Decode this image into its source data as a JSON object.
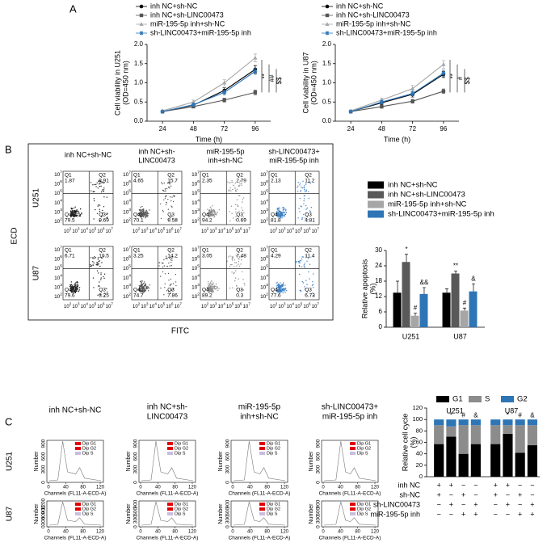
{
  "panel_labels": [
    "A",
    "B",
    "C"
  ],
  "chart_data": [
    {
      "type": "line",
      "ylabel": [
        "Cell viability in U251",
        "(OD=450 nm)"
      ],
      "xlabel": "Time (h)",
      "x": [
        24,
        48,
        72,
        96
      ],
      "xlim": [
        12,
        108
      ],
      "xticks": [
        24,
        48,
        72,
        96
      ],
      "ylim": [
        0,
        2
      ],
      "yticks": [
        {
          "value": 0,
          "label": "0.0"
        },
        0.5,
        {
          "value": 1,
          "label": "1.0"
        },
        1.5,
        {
          "value": 2,
          "label": "2.0"
        }
      ],
      "annotations": [
        "**",
        "##",
        "$$"
      ],
      "series": [
        {
          "name": "inh NC+sh-NC",
          "color": "#000000",
          "marker": "circle",
          "values": [
            0.25,
            0.42,
            0.8,
            1.35
          ],
          "errors": [
            0.02,
            0.04,
            0.07,
            0.1
          ]
        },
        {
          "name": "inh NC+sh-LINC00473",
          "color": "#555555",
          "marker": "square",
          "values": [
            0.25,
            0.38,
            0.55,
            0.75
          ],
          "errors": [
            0.02,
            0.03,
            0.05,
            0.06
          ]
        },
        {
          "name": "miR-195-5p inh+sh-NC",
          "color": "#a6a6a6",
          "marker": "triangle",
          "values": [
            0.27,
            0.5,
            1.0,
            1.65
          ],
          "errors": [
            0.02,
            0.05,
            0.08,
            0.1
          ]
        },
        {
          "name": "sh-LINC00473+miR-195-5p inh",
          "color": "#2e75b6",
          "marker": "star",
          "values": [
            0.25,
            0.43,
            0.75,
            1.3
          ],
          "errors": [
            0.02,
            0.04,
            0.06,
            0.08
          ]
        }
      ]
    },
    {
      "type": "line",
      "ylabel": [
        "Cell viability in U87",
        "(OD=450 nm)"
      ],
      "xlabel": "Time (h)",
      "x": [
        24,
        48,
        72,
        96
      ],
      "xlim": [
        12,
        108
      ],
      "xticks": [
        24,
        48,
        72,
        96
      ],
      "ylim": [
        0,
        2
      ],
      "yticks": [
        {
          "value": 0,
          "label": "0.0"
        },
        0.5,
        {
          "value": 1,
          "label": "1.0"
        },
        1.5,
        {
          "value": 2,
          "label": "2.0"
        }
      ],
      "annotations": [
        "**",
        "#",
        "$$"
      ],
      "series": [
        {
          "name": "inh NC+sh-NC",
          "color": "#000000",
          "marker": "circle",
          "values": [
            0.25,
            0.48,
            0.7,
            1.22
          ],
          "errors": [
            0.02,
            0.05,
            0.07,
            0.08
          ]
        },
        {
          "name": "inh NC+sh-LINC00473",
          "color": "#555555",
          "marker": "square",
          "values": [
            0.25,
            0.38,
            0.52,
            0.78
          ],
          "errors": [
            0.02,
            0.04,
            0.05,
            0.06
          ]
        },
        {
          "name": "miR-195-5p inh+sh-NC",
          "color": "#a6a6a6",
          "marker": "triangle",
          "values": [
            0.27,
            0.55,
            0.85,
            1.48
          ],
          "errors": [
            0.02,
            0.05,
            0.08,
            0.1
          ]
        },
        {
          "name": "sh-LINC00473+miR-195-5p inh",
          "color": "#2e75b6",
          "marker": "star",
          "values": [
            0.25,
            0.5,
            0.72,
            1.25
          ],
          "errors": [
            0.02,
            0.05,
            0.06,
            0.08
          ]
        }
      ]
    },
    {
      "type": "bar",
      "ylabel": [
        "Relative apoptosis",
        "(%)"
      ],
      "categories": [
        "U251",
        "U87"
      ],
      "ylim": [
        0,
        30
      ],
      "yticks": [
        0,
        6,
        12,
        18,
        24,
        30
      ],
      "series": [
        {
          "name": "inh NC+sh-NC",
          "color": "#000000",
          "values": [
            13.5,
            13.5
          ],
          "errors": [
            4.5,
            1.5
          ],
          "significance": [
            null,
            null
          ]
        },
        {
          "name": "inh NC+sh-LINC00473",
          "color": "#595959",
          "values": [
            25.5,
            21
          ],
          "errors": [
            3,
            1
          ],
          "significance": [
            "*",
            "**"
          ]
        },
        {
          "name": "miR-195-5p inh+sh-NC",
          "color": "#a6a6a6",
          "values": [
            4.5,
            6.5
          ],
          "errors": [
            1,
            1
          ],
          "significance": [
            "#",
            "#"
          ]
        },
        {
          "name": "sh-LINC00473+miR-195-5p inh",
          "color": "#2e75b6",
          "values": [
            13,
            14
          ],
          "errors": [
            2.5,
            3
          ],
          "significance": [
            "&&",
            "&"
          ]
        }
      ]
    },
    {
      "type": "stacked_bar",
      "ylabel": [
        "Relative cell cycle",
        "(%)"
      ],
      "groups": [
        "U251",
        "U87"
      ],
      "ylim": [
        0,
        120
      ],
      "yticks": [
        0,
        20,
        40,
        60,
        80,
        100,
        120
      ],
      "significance": [
        null,
        "*",
        "#",
        "&",
        null,
        "*",
        "#",
        "&"
      ],
      "series": [
        {
          "name": "G1",
          "color": "#000000",
          "values": [
            57,
            70,
            40,
            57,
            57,
            75,
            42,
            55
          ]
        },
        {
          "name": "S",
          "color": "#8c8c8c",
          "values": [
            33,
            18,
            50,
            33,
            33,
            15,
            48,
            35
          ]
        },
        {
          "name": "G2",
          "color": "#2e75b6",
          "values": [
            10,
            12,
            10,
            10,
            10,
            10,
            10,
            10
          ]
        }
      ],
      "conditions": [
        {
          "name": "inh NC",
          "signs": [
            "+",
            "+",
            "−",
            "−",
            "+",
            "+",
            "−",
            "−"
          ]
        },
        {
          "name": "sh-NC",
          "signs": [
            "+",
            "−",
            "+",
            "−",
            "+",
            "−",
            "+",
            "−"
          ]
        },
        {
          "name": "sh-LINC00473",
          "signs": [
            "−",
            "+",
            "−",
            "+",
            "−",
            "+",
            "−",
            "+"
          ]
        },
        {
          "name": "miR-195-5p inh",
          "signs": [
            "−",
            "−",
            "+",
            "+",
            "−",
            "−",
            "+",
            "+"
          ]
        }
      ]
    }
  ],
  "flow": {
    "columns": [
      [
        "inh NC+sh-NC"
      ],
      [
        "inh NC+sh-",
        "LINC00473"
      ],
      [
        "miR-195-5p",
        "inh+sh-NC"
      ],
      [
        "sh-LINC00473+",
        "miR-195-5p inh"
      ]
    ],
    "rows": [
      "U251",
      "U87"
    ],
    "xlabel": "FITC",
    "ylabel": "ECD",
    "tick_base": "10",
    "tick_exponents": [
      "2",
      "3",
      "4",
      "5",
      "6",
      "7"
    ],
    "quadrant_names": [
      "Q1",
      "Q2",
      "Q3",
      "Q4"
    ],
    "dot_colors": [
      "#222222",
      "#555555",
      "#8c8c8c",
      "#3d7fc4"
    ],
    "plots": [
      [
        [
          1.87,
          8.91,
          9.69,
          79.5
        ],
        [
          4.65,
          15.7,
          9.58,
          70.1
        ],
        [
          2.35,
          2.79,
          0.69,
          94.2
        ],
        [
          2.13,
          11.2,
          4.81,
          81.8
        ]
      ],
      [
        [
          6.71,
          10.5,
          3.25,
          79.6
        ],
        [
          3.25,
          14.2,
          7.86,
          74.7
        ],
        [
          3.05,
          7.48,
          0.3,
          89.2
        ],
        [
          4.29,
          11.4,
          6.73,
          77.6
        ]
      ]
    ]
  },
  "histograms": {
    "columns": [
      [
        "inh NC+sh-NC"
      ],
      [
        "inh NC+sh-",
        "LINC00473"
      ],
      [
        "miR-195-5p",
        "inh+sh-NC"
      ],
      [
        "sh-LINC00473+",
        "miR-195-5p inh"
      ]
    ],
    "rows": [
      "U251",
      "U87"
    ],
    "ylabel": "Number",
    "xlabel": "Channels (FL11-A-ECD-A)",
    "legend": [
      "Dip G1",
      "Dip G2",
      "Dip S"
    ],
    "legend_colors": [
      "#e00000",
      "#e00000",
      "#c9bde0"
    ],
    "xticks": [
      0,
      40,
      80,
      120
    ],
    "yticks": [
      [
        [
          0,
          300,
          600,
          900
        ],
        [
          0,
          300,
          600,
          900
        ],
        [
          0,
          300,
          600,
          900
        ],
        [
          0,
          300,
          600,
          900
        ]
      ],
      [
        [
          0,
          300,
          600,
          900,
          1200
        ],
        [
          0,
          300,
          600,
          900
        ],
        [
          0,
          300,
          600,
          900
        ],
        [
          0,
          300,
          600,
          900
        ]
      ]
    ]
  }
}
